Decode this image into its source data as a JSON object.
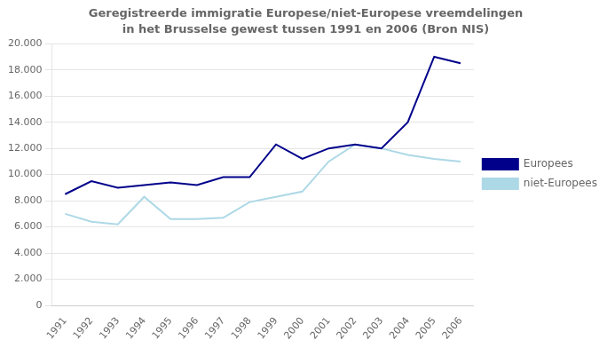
{
  "chart_data": {
    "type": "line",
    "title": "Geregistreerde immigratie Europese/niet-Europese vreemdelingen",
    "subtitle": "in het Brusselse gewest tussen 1991 en 2006 (Bron NIS)",
    "x": [
      1991,
      1992,
      1993,
      1994,
      1995,
      1996,
      1997,
      1998,
      1999,
      2000,
      2001,
      2002,
      2003,
      2004,
      2005,
      2006
    ],
    "series": [
      {
        "name": "Europees",
        "color": "#00008B",
        "values": [
          8500,
          9500,
          9000,
          9200,
          9400,
          9200,
          9800,
          9800,
          12300,
          11200,
          12000,
          12300,
          12000,
          14000,
          19000,
          18500
        ]
      },
      {
        "name": "niet-Europees",
        "color": "#ADD8E6",
        "values": [
          7000,
          6400,
          6200,
          8300,
          6600,
          6600,
          6700,
          7900,
          8300,
          8700,
          11000,
          12300,
          12000,
          11500,
          11200,
          11000
        ]
      }
    ],
    "xlim": [
      1990.5,
      2006.5
    ],
    "xticks": [
      1991,
      1992,
      1993,
      1994,
      1995,
      1996,
      1997,
      1998,
      1999,
      2000,
      2001,
      2002,
      2003,
      2004,
      2005,
      2006
    ],
    "ylim": [
      0,
      20000
    ],
    "yticks": [
      0,
      {
        "value": 2000,
        "label": "2.000"
      },
      {
        "value": 4000,
        "label": "4.000"
      },
      {
        "value": 6000,
        "label": "6.000"
      },
      {
        "value": 8000,
        "label": "8.000"
      },
      {
        "value": 10000,
        "label": "10.000"
      },
      {
        "value": 12000,
        "label": "12.000"
      },
      {
        "value": 14000,
        "label": "14.000"
      },
      {
        "value": 16000,
        "label": "16.000"
      },
      {
        "value": 18000,
        "label": "18.000"
      },
      {
        "value": 20000,
        "label": "20.000"
      }
    ],
    "grid": true,
    "legend": "right"
  }
}
